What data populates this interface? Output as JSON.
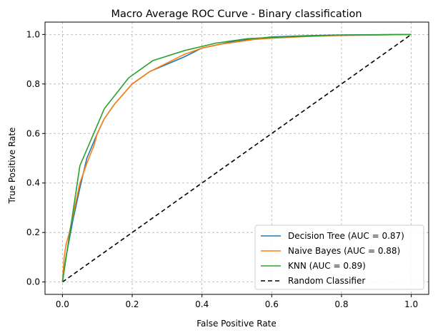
{
  "chart_data": {
    "type": "line",
    "title": "Macro Average ROC Curve - Binary classification",
    "xlabel": "False Positive Rate",
    "ylabel": "True Positive Rate",
    "xlim": [
      -0.05,
      1.05
    ],
    "ylim": [
      -0.05,
      1.05
    ],
    "xticks": [
      "0.0",
      "0.2",
      "0.4",
      "0.6",
      "0.8",
      "1.0"
    ],
    "yticks": [
      "0.0",
      "0.2",
      "0.4",
      "0.6",
      "0.8",
      "1.0"
    ],
    "grid": true,
    "legend_position": "lower-right",
    "series": [
      {
        "name": "Decision Tree (AUC = 0.87)",
        "color": "#1f77b4",
        "dashed": false,
        "x": [
          0.0,
          0.01,
          0.03,
          0.05,
          0.07,
          0.1,
          0.12,
          0.15,
          0.2,
          0.25,
          0.3,
          0.35,
          0.4,
          0.5,
          0.6,
          0.7,
          0.8,
          0.9,
          1.0
        ],
        "y": [
          0.0,
          0.1,
          0.25,
          0.38,
          0.5,
          0.6,
          0.66,
          0.72,
          0.8,
          0.85,
          0.88,
          0.91,
          0.945,
          0.975,
          0.99,
          0.995,
          0.998,
          0.999,
          1.0
        ]
      },
      {
        "name": "Naive Bayes (AUC = 0.88)",
        "color": "#ff7f0e",
        "dashed": false,
        "x": [
          0.0,
          0.005,
          0.01,
          0.02,
          0.035,
          0.05,
          0.07,
          0.09,
          0.1,
          0.12,
          0.15,
          0.2,
          0.25,
          0.3,
          0.35,
          0.4,
          0.45,
          0.5,
          0.55,
          0.6,
          0.7,
          0.8,
          0.9,
          1.0
        ],
        "y": [
          0.0,
          0.1,
          0.15,
          0.2,
          0.3,
          0.4,
          0.48,
          0.55,
          0.6,
          0.66,
          0.72,
          0.8,
          0.85,
          0.885,
          0.92,
          0.945,
          0.96,
          0.97,
          0.98,
          0.985,
          0.992,
          0.996,
          0.998,
          1.0
        ]
      },
      {
        "name": "KNN (AUC = 0.89)",
        "color": "#2ca02c",
        "dashed": false,
        "x": [
          0.0,
          0.05,
          0.12,
          0.19,
          0.26,
          0.35,
          0.44,
          0.53,
          0.63,
          0.78,
          1.0
        ],
        "y": [
          0.0,
          0.47,
          0.7,
          0.825,
          0.895,
          0.935,
          0.965,
          0.983,
          0.99,
          0.997,
          1.0
        ]
      },
      {
        "name": "Random Classifier",
        "color": "#000000",
        "dashed": true,
        "x": [
          0.0,
          1.0
        ],
        "y": [
          0.0,
          1.0
        ]
      }
    ]
  }
}
